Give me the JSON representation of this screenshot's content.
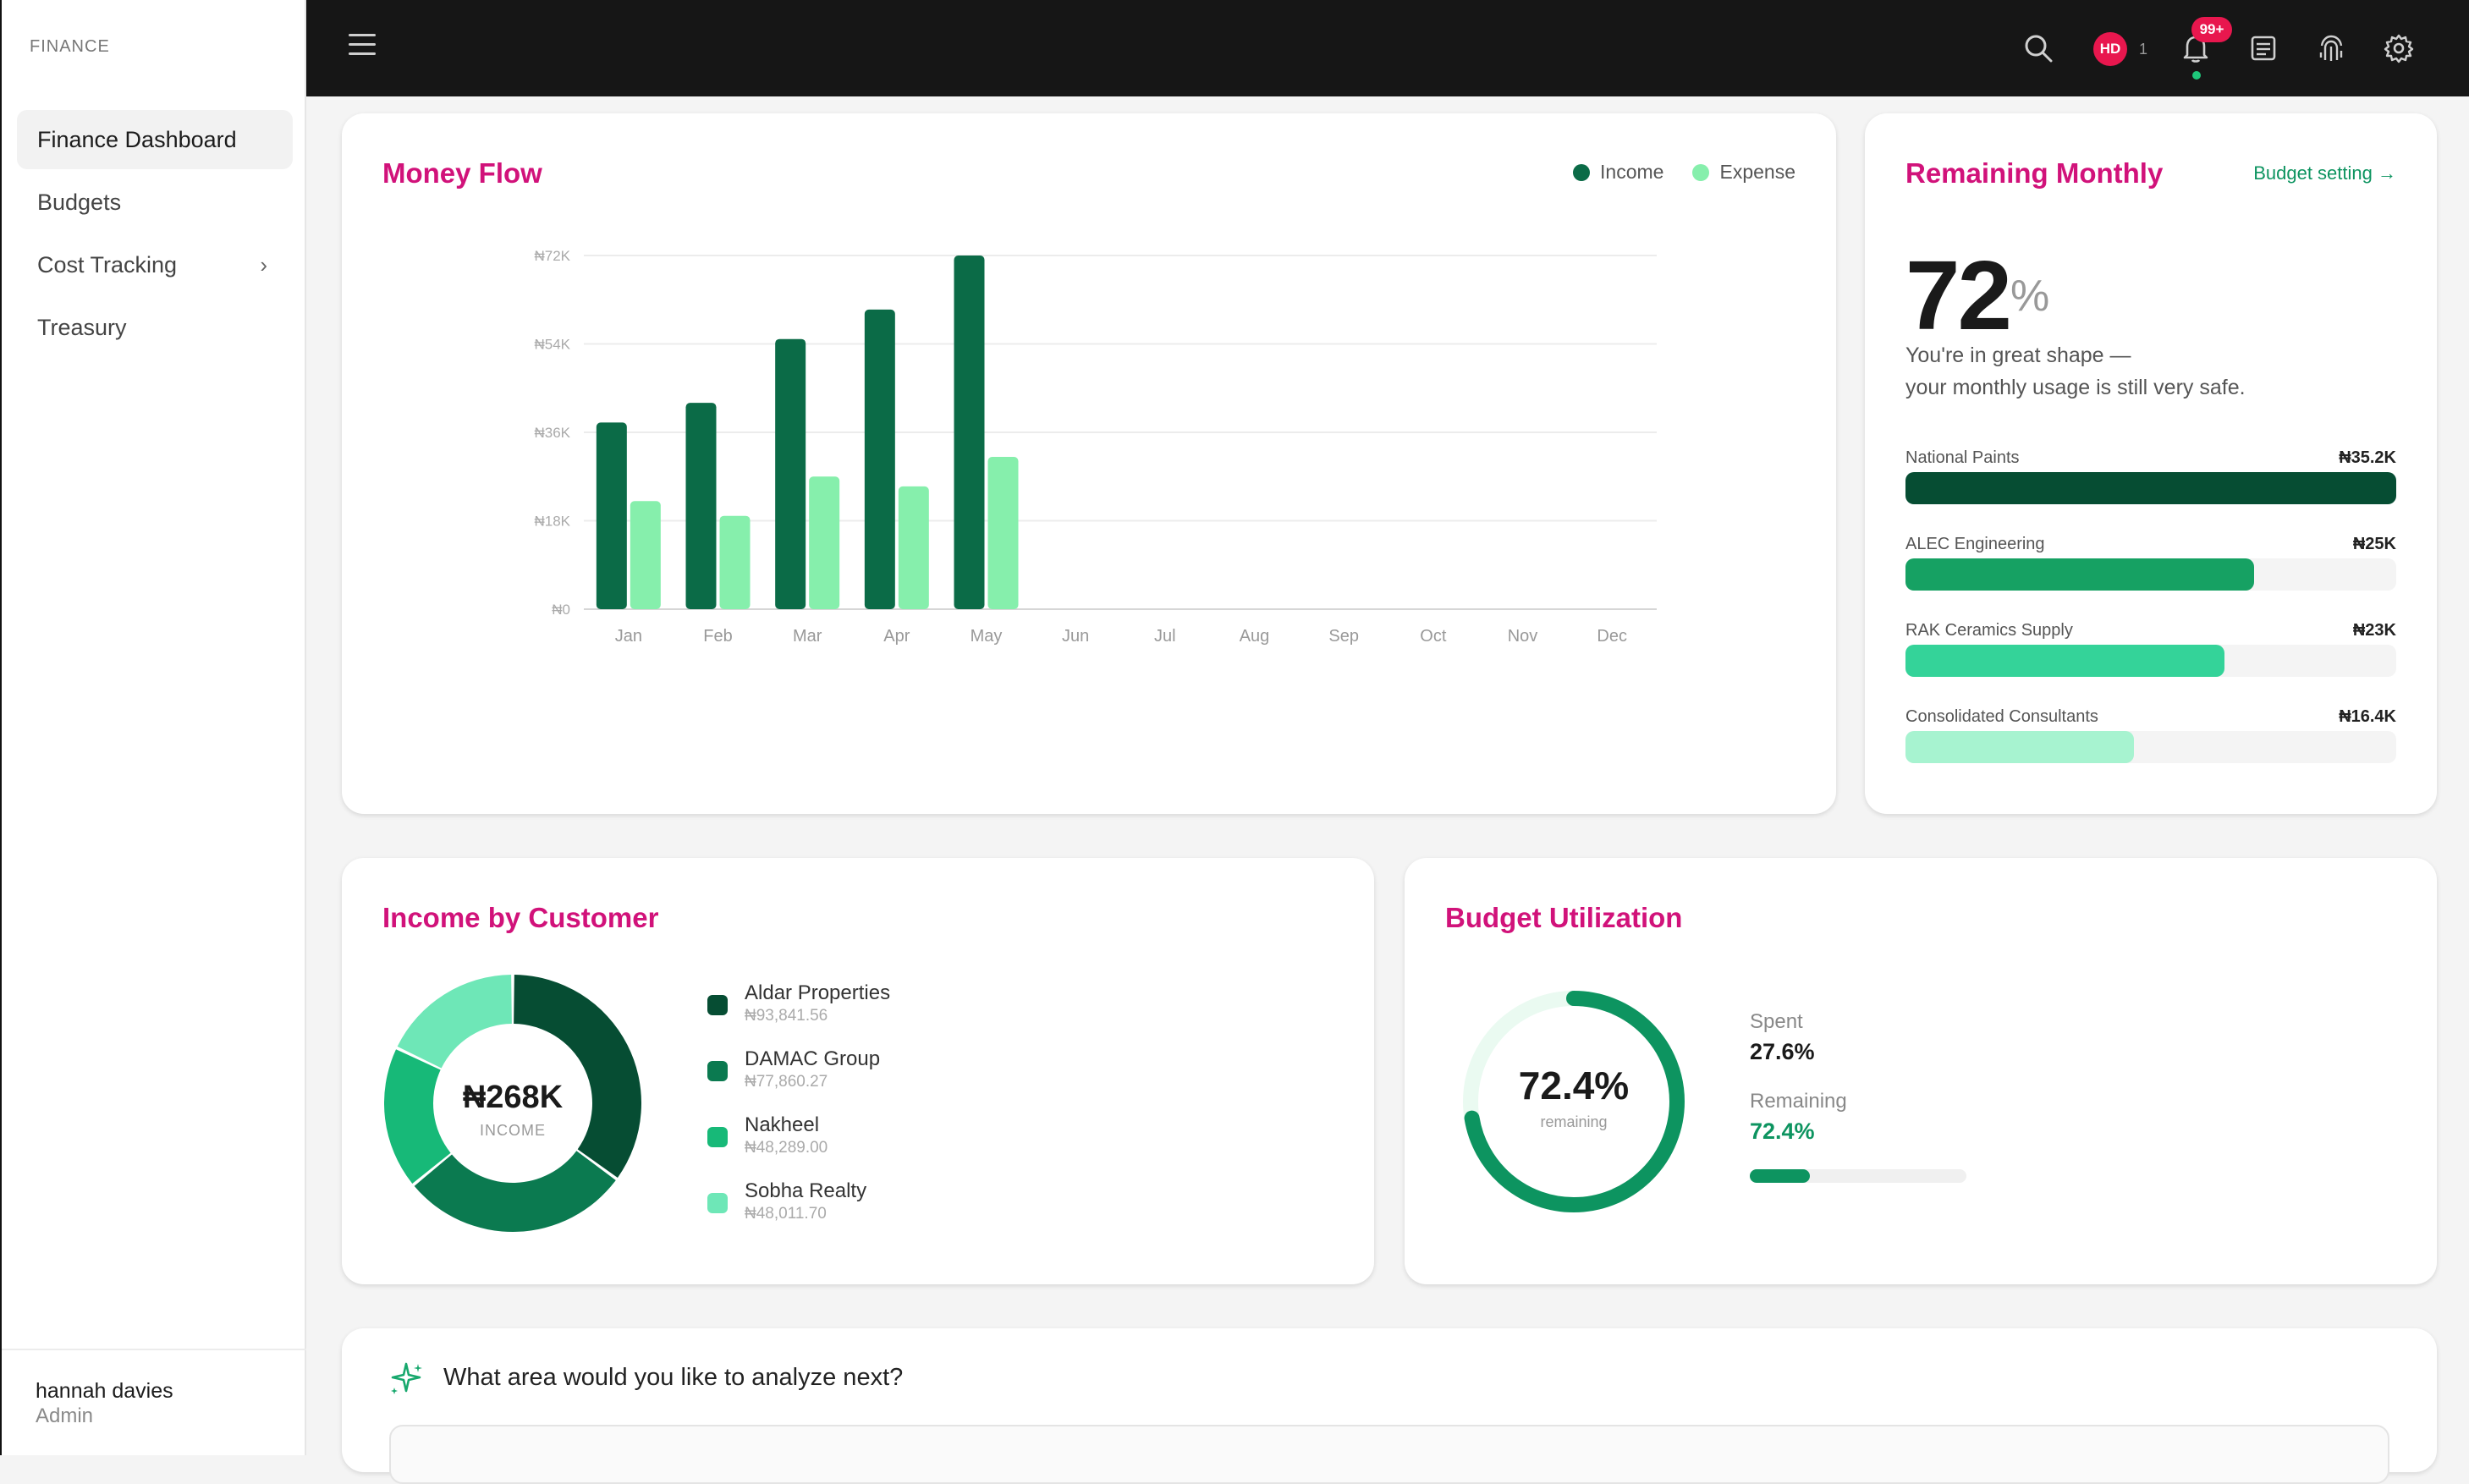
{
  "sidebar": {
    "brand": "FINANCE",
    "items": [
      {
        "label": "Finance Dashboard"
      },
      {
        "label": "Budgets"
      },
      {
        "label": "Cost Tracking"
      },
      {
        "label": "Treasury"
      }
    ],
    "user": {
      "name": "hannah davies",
      "role": "Admin"
    }
  },
  "topbar": {
    "avatar_initials": "HD",
    "avatar_count": "1",
    "notification_badge": "99+",
    "icons": [
      "menu-icon",
      "search-icon",
      "bell-icon",
      "document-icon",
      "fingerprint-icon",
      "gear-icon"
    ]
  },
  "money_flow": {
    "title": "Money Flow",
    "legend": {
      "income": "Income",
      "expense": "Expense"
    }
  },
  "chart_data": {
    "type": "bar",
    "categories": [
      "Jan",
      "Feb",
      "Mar",
      "Apr",
      "May",
      "Jun",
      "Jul",
      "Aug",
      "Sep",
      "Oct",
      "Nov",
      "Dec"
    ],
    "series": [
      {
        "name": "Income",
        "color": "#0b6b47",
        "values": [
          38,
          42,
          55,
          61,
          72,
          null,
          null,
          null,
          null,
          null,
          null,
          null
        ]
      },
      {
        "name": "Expense",
        "color": "#86efac",
        "values": [
          22,
          19,
          27,
          25,
          31,
          null,
          null,
          null,
          null,
          null,
          null,
          null
        ]
      }
    ],
    "ylim": [
      0,
      72
    ],
    "yticks": [
      0,
      18,
      36,
      54,
      72
    ],
    "ytick_labels": [
      "₦0",
      "₦18K",
      "₦36K",
      "₦54K",
      "₦72K"
    ],
    "grid": true,
    "legend_position": "top-right"
  },
  "remaining": {
    "title": "Remaining Monthly",
    "link": "Budget setting →",
    "value": "72",
    "unit": "%",
    "line1": "You're in great shape —",
    "line2": "your monthly usage is still very safe.",
    "vendors": [
      {
        "name": "National Paints",
        "value": "₦35.2K",
        "fraction": 1.0,
        "color": "#064d33"
      },
      {
        "name": "ALEC Engineering",
        "value": "₦25K",
        "fraction": 0.71,
        "color": "#16a163"
      },
      {
        "name": "RAK Ceramics Supply",
        "value": "₦23K",
        "fraction": 0.65,
        "color": "#34d399"
      },
      {
        "name": "Consolidated Consultants",
        "value": "₦16.4K",
        "fraction": 0.465,
        "color": "#a7f3d0"
      }
    ]
  },
  "income_customer": {
    "title": "Income by Customer",
    "total": "₦268K",
    "total_label": "INCOME",
    "customers": [
      {
        "name": "Aldar Properties",
        "amount": "₦93,841.56",
        "value": 93841.56,
        "color": "#064d33"
      },
      {
        "name": "DAMAC Group",
        "amount": "₦77,860.27",
        "value": 77860.27,
        "color": "#0b7a50"
      },
      {
        "name": "Nakheel",
        "amount": "₦48,289.00",
        "value": 48289.0,
        "color": "#17b978"
      },
      {
        "name": "Sobha Realty",
        "amount": "₦48,011.70",
        "value": 48011.7,
        "color": "#6ee7b7"
      }
    ]
  },
  "budget_util": {
    "title": "Budget Utilization",
    "value": "72.4%",
    "value_label": "remaining",
    "fraction": 0.724,
    "spent_label": "Spent",
    "spent_value": "27.6%",
    "spent_fraction": 0.276,
    "remaining_label": "Remaining",
    "remaining_value": "72.4%"
  },
  "analyze": {
    "question": "What area would you like to analyze next?"
  }
}
